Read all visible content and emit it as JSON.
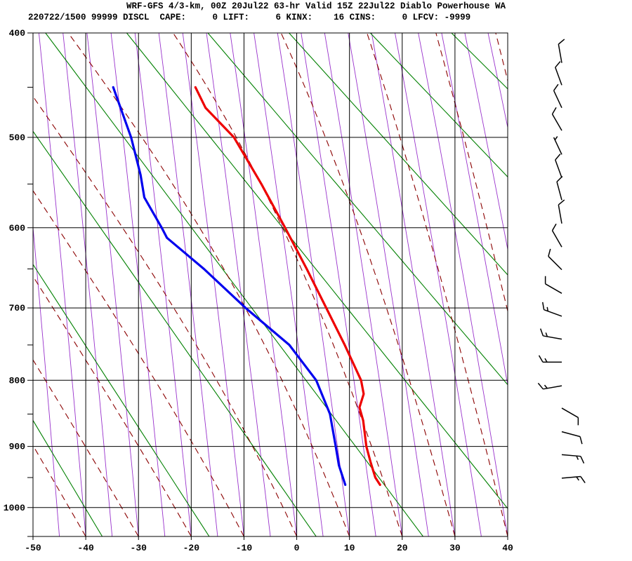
{
  "chart_data": {
    "type": "line",
    "variant": "stuve-thermodynamic-sounding",
    "title": "WRF-GFS 4/3-km, 00Z 20Jul22 63-hr Valid 15Z 22Jul22 Diablo Powerhouse WA",
    "info_line": "220722/1500 99999 DISCL  CAPE:     0 LIFT:     6 KINX:    16 CINS:     0 LFCV: -9999",
    "x_axis": {
      "min": -50,
      "max": 40,
      "tick_values": [
        -50,
        -40,
        -30,
        -20,
        -10,
        0,
        10,
        20,
        30,
        40
      ]
    },
    "y_axis": {
      "top": 400,
      "bottom": 1050,
      "scale_exponent": 0.2857,
      "tick_values": [
        400,
        500,
        600,
        700,
        800,
        900,
        1000
      ],
      "minor_tick_step": 50
    },
    "series": [
      {
        "name": "temperature",
        "color": "#ee0000",
        "width": 3.2,
        "points": [
          {
            "p": 450,
            "t": -19.2
          },
          {
            "p": 470,
            "t": -17.3
          },
          {
            "p": 500,
            "t": -11.9
          },
          {
            "p": 550,
            "t": -6.7
          },
          {
            "p": 600,
            "t": -2.2
          },
          {
            "p": 650,
            "t": 1.9
          },
          {
            "p": 700,
            "t": 5.6
          },
          {
            "p": 750,
            "t": 9.1
          },
          {
            "p": 800,
            "t": 12.2
          },
          {
            "p": 820,
            "t": 12.7
          },
          {
            "p": 840,
            "t": 11.9
          },
          {
            "p": 860,
            "t": 12.6
          },
          {
            "p": 900,
            "t": 13.2
          },
          {
            "p": 925,
            "t": 14.0
          },
          {
            "p": 950,
            "t": 14.9
          },
          {
            "p": 962,
            "t": 15.8
          }
        ]
      },
      {
        "name": "dewpoint",
        "color": "#0000ee",
        "width": 3.2,
        "points": [
          {
            "p": 450,
            "t": -34.8
          },
          {
            "p": 500,
            "t": -31.4
          },
          {
            "p": 540,
            "t": -29.6
          },
          {
            "p": 565,
            "t": -28.9
          },
          {
            "p": 600,
            "t": -25.6
          },
          {
            "p": 612,
            "t": -24.6
          },
          {
            "p": 650,
            "t": -17.6
          },
          {
            "p": 700,
            "t": -9.7
          },
          {
            "p": 750,
            "t": -1.4
          },
          {
            "p": 800,
            "t": 3.7
          },
          {
            "p": 850,
            "t": 6.3
          },
          {
            "p": 900,
            "t": 7.4
          },
          {
            "p": 930,
            "t": 8.0
          },
          {
            "p": 962,
            "t": 9.2
          }
        ]
      }
    ],
    "wind_barbs": {
      "x": 800,
      "barbs": [
        {
          "p": 427,
          "dir": 350,
          "speed": 10
        },
        {
          "p": 448,
          "dir": 340,
          "speed": 10
        },
        {
          "p": 470,
          "dir": 335,
          "speed": 10
        },
        {
          "p": 493,
          "dir": 330,
          "speed": 10
        },
        {
          "p": 518,
          "dir": 335,
          "speed": 5
        },
        {
          "p": 543,
          "dir": 340,
          "speed": 10
        },
        {
          "p": 568,
          "dir": 345,
          "speed": 10
        },
        {
          "p": 595,
          "dir": 350,
          "speed": 10
        },
        {
          "p": 623,
          "dir": 330,
          "speed": 10
        },
        {
          "p": 651,
          "dir": 315,
          "speed": 10
        },
        {
          "p": 681,
          "dir": 300,
          "speed": 10
        },
        {
          "p": 711,
          "dir": 290,
          "speed": 15
        },
        {
          "p": 742,
          "dir": 280,
          "speed": 15
        },
        {
          "p": 774,
          "dir": 270,
          "speed": 15
        },
        {
          "p": 808,
          "dir": 260,
          "speed": 15
        },
        {
          "p": 841,
          "dir": 120,
          "speed": 10
        },
        {
          "p": 877,
          "dir": 105,
          "speed": 10
        },
        {
          "p": 913,
          "dir": 95,
          "speed": 15
        },
        {
          "p": 951,
          "dir": 85,
          "speed": 15
        }
      ]
    },
    "background": {
      "colors": {
        "grid": "#000000",
        "dry_adiabat": "#008000",
        "moist_adiabat": "#8b0000",
        "mixing_ratio": "#9932cc"
      },
      "dry_adiabat_theta_K": [
        233,
        253,
        273,
        293,
        313,
        333,
        353,
        373,
        393
      ],
      "moist_adiabat_bottom_temps": [
        -40,
        -30,
        -20,
        -10,
        0,
        10,
        20,
        30,
        40,
        50,
        60
      ],
      "mixing_ratio_bottom_temps": [
        -60,
        -55,
        -50,
        -45,
        -40,
        -35,
        -30,
        -25,
        -20,
        -15,
        -10,
        -5,
        0,
        5,
        10,
        15,
        20,
        25,
        30,
        35,
        40,
        45,
        50,
        55,
        60,
        65,
        70,
        75,
        80,
        85,
        90
      ]
    }
  }
}
